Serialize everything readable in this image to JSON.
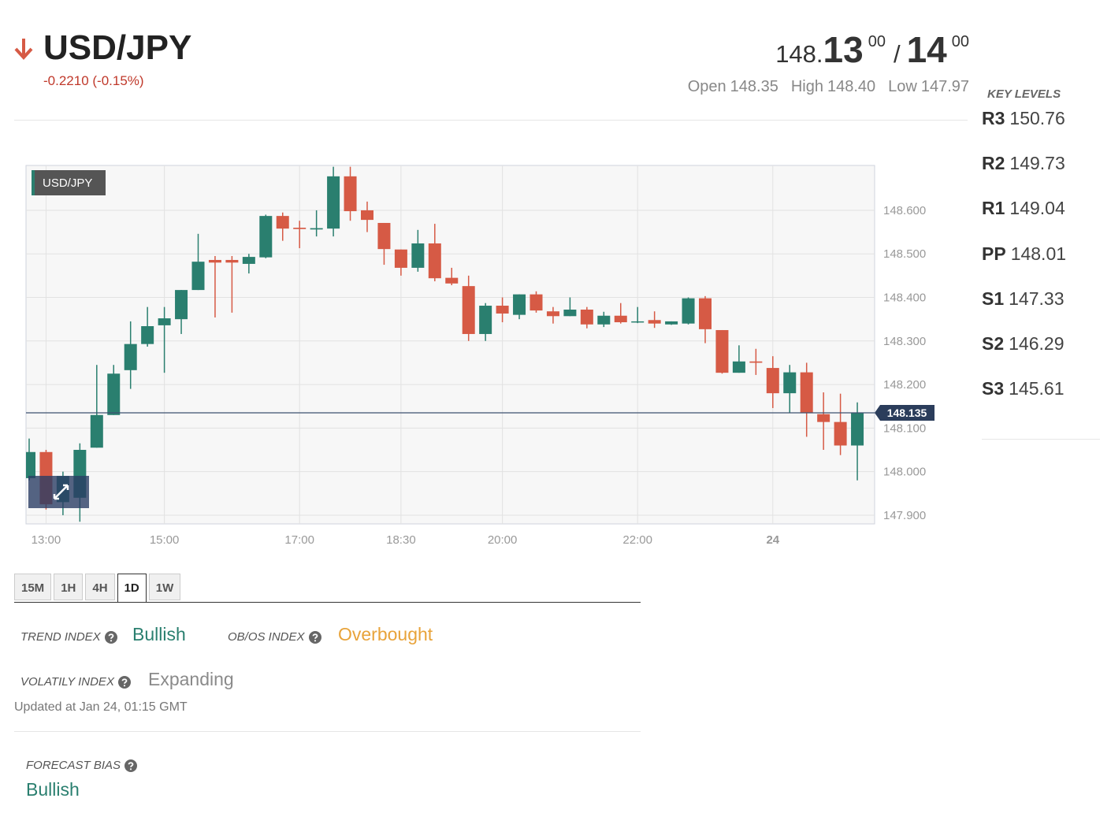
{
  "header": {
    "symbol": "USD/JPY",
    "change": "-0.2210 (-0.15%)",
    "bid_int": "148.",
    "bid_big": "13",
    "bid_pip": "00",
    "separator": "/",
    "ask_big": "14",
    "ask_pip": "00",
    "stats": [
      {
        "label": "Open",
        "value": "148.35"
      },
      {
        "label": "High",
        "value": "148.40"
      },
      {
        "label": "Low",
        "value": "147.97"
      }
    ]
  },
  "key_levels": {
    "title": "KEY LEVELS",
    "levels": [
      {
        "label": "R3",
        "value": "150.76"
      },
      {
        "label": "R2",
        "value": "149.73"
      },
      {
        "label": "R1",
        "value": "149.04"
      },
      {
        "label": "PP",
        "value": "148.01"
      },
      {
        "label": "S1",
        "value": "147.33"
      },
      {
        "label": "S2",
        "value": "146.29"
      },
      {
        "label": "S3",
        "value": "145.61"
      }
    ]
  },
  "chart_data": {
    "type": "candlestick",
    "label": "USD/JPY",
    "up_color": "#2a7f6f",
    "down_color": "#d65a45",
    "grid": true,
    "categories": [
      null,
      "13:00",
      null,
      null,
      null,
      null,
      null,
      null,
      "15:00",
      null,
      null,
      null,
      null,
      null,
      null,
      null,
      "17:00",
      null,
      null,
      null,
      null,
      null,
      "18:30",
      null,
      null,
      null,
      null,
      null,
      "20:00",
      null,
      null,
      null,
      null,
      null,
      null,
      null,
      "22:00",
      null,
      null,
      null,
      null,
      null,
      null,
      null,
      "24",
      null,
      null,
      null,
      null,
      null
    ],
    "open": [
      147.985,
      148.045,
      147.93,
      147.94,
      148.055,
      148.13,
      148.233,
      148.293,
      148.336,
      148.35,
      148.417,
      148.486,
      148.486,
      148.477,
      148.492,
      148.587,
      148.56,
      148.556,
      148.558,
      148.678,
      148.6,
      148.571,
      148.51,
      148.468,
      148.524,
      148.445,
      148.426,
      148.316,
      148.381,
      148.36,
      148.407,
      148.368,
      148.357,
      148.372,
      148.338,
      148.358,
      148.343,
      148.348,
      148.338,
      148.34,
      148.398,
      148.325,
      148.227,
      148.253,
      148.238,
      148.18,
      148.228,
      148.132,
      148.114,
      148.06
    ],
    "high": [
      148.076,
      148.05,
      148.0,
      148.065,
      148.245,
      148.245,
      148.345,
      148.378,
      148.378,
      148.417,
      148.546,
      148.495,
      148.495,
      148.5,
      148.59,
      148.595,
      148.576,
      148.6,
      148.7,
      148.7,
      148.62,
      148.571,
      148.51,
      148.555,
      148.569,
      148.468,
      148.45,
      148.387,
      148.4,
      148.407,
      148.414,
      148.378,
      148.4,
      148.378,
      148.367,
      148.387,
      148.378,
      148.368,
      148.345,
      148.4,
      148.403,
      148.325,
      148.29,
      148.282,
      148.265,
      148.245,
      148.25,
      148.182,
      148.179,
      148.159
    ],
    "low": [
      147.98,
      147.913,
      147.9,
      147.885,
      148.055,
      148.13,
      148.19,
      148.287,
      148.227,
      148.316,
      148.417,
      148.354,
      148.365,
      148.455,
      148.49,
      148.53,
      148.513,
      148.54,
      148.54,
      148.576,
      148.55,
      148.475,
      148.45,
      148.459,
      148.437,
      148.428,
      148.3,
      148.3,
      148.343,
      148.35,
      148.365,
      148.34,
      148.357,
      148.329,
      148.332,
      148.34,
      148.341,
      148.33,
      148.337,
      148.338,
      148.295,
      148.225,
      148.227,
      148.222,
      148.146,
      148.135,
      148.08,
      148.05,
      148.038,
      147.98
    ],
    "close": [
      148.045,
      147.925,
      147.99,
      148.05,
      148.13,
      148.225,
      148.293,
      148.334,
      148.352,
      148.417,
      148.482,
      148.48,
      148.48,
      148.493,
      148.587,
      148.558,
      148.557,
      148.559,
      148.678,
      148.598,
      148.578,
      148.511,
      148.468,
      148.524,
      148.444,
      148.432,
      148.316,
      148.381,
      148.363,
      148.407,
      148.37,
      148.357,
      148.372,
      148.338,
      148.358,
      148.343,
      148.345,
      148.34,
      148.345,
      148.398,
      148.327,
      148.227,
      148.253,
      148.25,
      148.18,
      148.228,
      148.135,
      148.114,
      148.06,
      148.135
    ],
    "last_price": 148.135,
    "ylim": [
      147.88,
      148.703
    ],
    "yticks": [
      {
        "value": 147.9,
        "label": "147.900"
      },
      {
        "value": 148.0,
        "label": "148.000"
      },
      {
        "value": 148.1,
        "label": "148.100"
      },
      {
        "value": 148.2,
        "label": "148.200"
      },
      {
        "value": 148.3,
        "label": "148.300"
      },
      {
        "value": 148.4,
        "label": "148.400"
      },
      {
        "value": 148.5,
        "label": "148.500"
      },
      {
        "value": 148.6,
        "label": "148.600"
      }
    ]
  },
  "timeframes": {
    "tabs": [
      "15M",
      "1H",
      "4H",
      "1D",
      "1W"
    ],
    "active": "1D"
  },
  "indices": {
    "items": [
      {
        "label": "TREND INDEX",
        "value": "Bullish",
        "color": "#2a7f6f"
      },
      {
        "label": "OB/OS INDEX",
        "value": "Overbought",
        "color": "#e8a33a"
      },
      {
        "label": "VOLATILY INDEX",
        "value": "Expanding",
        "color": "#8a8a8a"
      }
    ],
    "updated": "Updated at Jan 24, 01:15 GMT"
  },
  "forecast": {
    "label": "FORECAST BIAS",
    "value": "Bullish",
    "color": "#2a7f6f"
  }
}
